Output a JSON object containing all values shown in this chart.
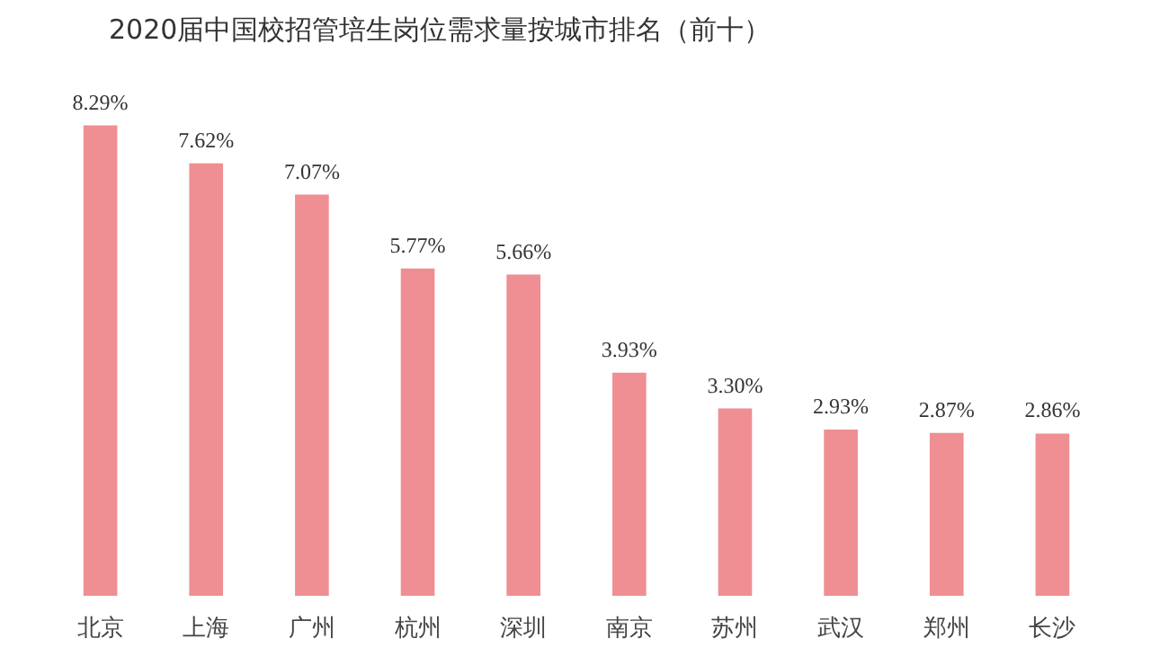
{
  "chart_data": {
    "type": "bar",
    "title": "2020届中国校招管培生岗位需求量按城市排名（前十）",
    "categories": [
      "北京",
      "上海",
      "广州",
      "杭州",
      "深圳",
      "南京",
      "苏州",
      "武汉",
      "郑州",
      "长沙"
    ],
    "values": [
      8.29,
      7.62,
      7.07,
      5.77,
      5.66,
      3.93,
      3.3,
      2.93,
      2.87,
      2.86
    ],
    "value_labels": [
      "8.29%",
      "7.62%",
      "7.07%",
      "5.77%",
      "5.66%",
      "3.93%",
      "3.30%",
      "2.93%",
      "2.87%",
      "2.86%"
    ],
    "color": "#ef8f93",
    "tick_labels": "x",
    "grid": false
  }
}
